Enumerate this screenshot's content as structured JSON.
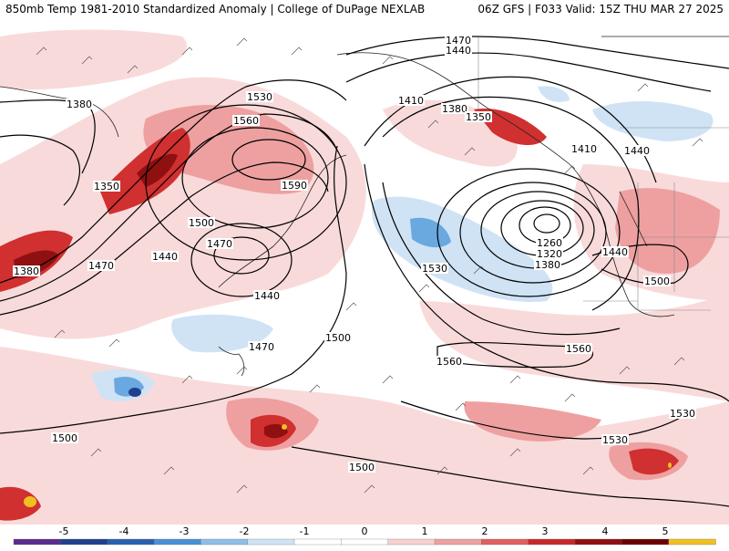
{
  "header": {
    "title_left": "850mb Temp 1981-2010 Standardized Anomaly | College of DuPage NEXLAB",
    "title_right": "06Z GFS | F033 Valid: 15Z THU MAR 27 2025"
  },
  "contour_labels": [
    {
      "text": "1470",
      "key": "c1"
    },
    {
      "text": "1440",
      "key": "c2"
    },
    {
      "text": "1380",
      "key": "c3"
    },
    {
      "text": "1530",
      "key": "c4"
    },
    {
      "text": "1560",
      "key": "c5"
    },
    {
      "text": "1590",
      "key": "c6"
    },
    {
      "text": "1350",
      "key": "c7"
    },
    {
      "text": "1500",
      "key": "c8"
    },
    {
      "text": "1470",
      "key": "c9"
    },
    {
      "text": "1440",
      "key": "c10"
    },
    {
      "text": "1380",
      "key": "c11"
    },
    {
      "text": "1470",
      "key": "c12"
    },
    {
      "text": "1440",
      "key": "c13"
    },
    {
      "text": "1470",
      "key": "c14"
    },
    {
      "text": "1500",
      "key": "c15"
    },
    {
      "text": "1530",
      "key": "c16"
    },
    {
      "text": "1410",
      "key": "c17"
    },
    {
      "text": "1380",
      "key": "c18"
    },
    {
      "text": "1350",
      "key": "c19"
    },
    {
      "text": "1410",
      "key": "c20"
    },
    {
      "text": "1440",
      "key": "c21"
    },
    {
      "text": "1260",
      "key": "c22"
    },
    {
      "text": "1320",
      "key": "c23"
    },
    {
      "text": "1380",
      "key": "c24"
    },
    {
      "text": "1440",
      "key": "c25"
    },
    {
      "text": "1500",
      "key": "c26"
    },
    {
      "text": "1560",
      "key": "c27"
    },
    {
      "text": "1560",
      "key": "c28"
    },
    {
      "text": "1530",
      "key": "c29"
    },
    {
      "text": "1530",
      "key": "c30"
    },
    {
      "text": "1500",
      "key": "c31"
    },
    {
      "text": "1500",
      "key": "c32"
    }
  ],
  "colorbar": {
    "ticks": [
      "-5",
      "-4",
      "-3",
      "-2",
      "-1",
      "0",
      "1",
      "2",
      "3",
      "4",
      "5"
    ],
    "colors": [
      "#5b2c8f",
      "#1f3f8f",
      "#2a5fb0",
      "#4a8fd6",
      "#8fbfe8",
      "#cfe3f5",
      "#ffffff",
      "#ffffff",
      "#f7d0d0",
      "#eea0a0",
      "#e06060",
      "#c82828",
      "#8f1010",
      "#6a0000",
      "#f0c020"
    ]
  }
}
